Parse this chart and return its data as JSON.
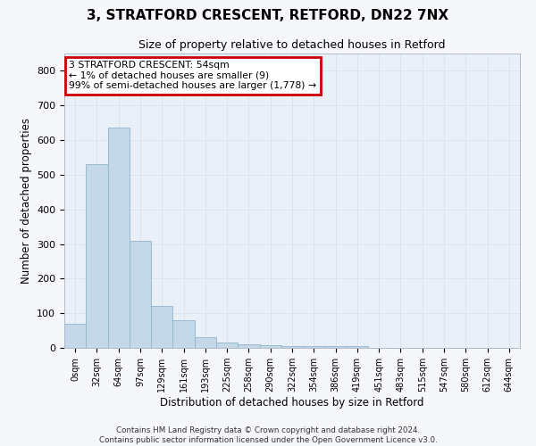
{
  "title_line1": "3, STRATFORD CRESCENT, RETFORD, DN22 7NX",
  "title_line2": "Size of property relative to detached houses in Retford",
  "xlabel": "Distribution of detached houses by size in Retford",
  "ylabel": "Number of detached properties",
  "bar_labels": [
    "0sqm",
    "32sqm",
    "64sqm",
    "97sqm",
    "129sqm",
    "161sqm",
    "193sqm",
    "225sqm",
    "258sqm",
    "290sqm",
    "322sqm",
    "354sqm",
    "386sqm",
    "419sqm",
    "451sqm",
    "483sqm",
    "515sqm",
    "547sqm",
    "580sqm",
    "612sqm",
    "644sqm"
  ],
  "bar_heights": [
    70,
    530,
    635,
    310,
    120,
    80,
    30,
    15,
    10,
    8,
    5,
    5,
    5,
    5,
    0,
    0,
    0,
    0,
    0,
    0,
    0
  ],
  "bar_color": "#c5d8ea",
  "bar_edge_color": "#90b4cc",
  "grid_color": "#d8e4f0",
  "bg_color": "#eaf0f8",
  "fig_color": "#f5f7fa",
  "annotation_text": "3 STRATFORD CRESCENT: 54sqm\n← 1% of detached houses are smaller (9)\n99% of semi-detached houses are larger (1,778) →",
  "annotation_box_color": "#ffffff",
  "annotation_box_edge": "#cc0000",
  "ylim": [
    0,
    850
  ],
  "yticks": [
    0,
    100,
    200,
    300,
    400,
    500,
    600,
    700,
    800
  ],
  "footer_line1": "Contains HM Land Registry data © Crown copyright and database right 2024.",
  "footer_line2": "Contains public sector information licensed under the Open Government Licence v3.0."
}
